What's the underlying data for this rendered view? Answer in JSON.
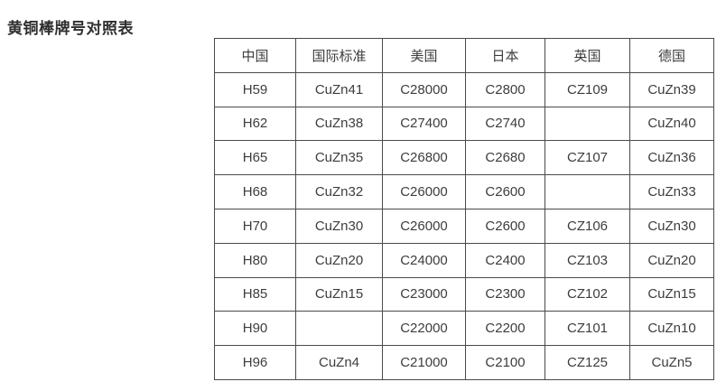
{
  "page": {
    "title": "黄铜棒牌号对照表"
  },
  "colors": {
    "table_border": "#4a4a4a",
    "text": "#3d3d3d",
    "title_text": "#2f2f2f",
    "background": "#ffffff"
  },
  "chart_data": {
    "type": "table",
    "title": "黄铜棒牌号对照表",
    "headers": [
      "中国",
      "国际标准",
      "美国",
      "日本",
      "英国",
      "德国"
    ],
    "rows": [
      [
        "H59",
        "CuZn41",
        "C28000",
        "C2800",
        "CZ109",
        "CuZn39"
      ],
      [
        "H62",
        "CuZn38",
        "C27400",
        "C2740",
        "",
        "CuZn40"
      ],
      [
        "H65",
        "CuZn35",
        "C26800",
        "C2680",
        "CZ107",
        "CuZn36"
      ],
      [
        "H68",
        "CuZn32",
        "C26000",
        "C2600",
        "",
        "CuZn33"
      ],
      [
        "H70",
        "CuZn30",
        "C26000",
        "C2600",
        "CZ106",
        "CuZn30"
      ],
      [
        "H80",
        "CuZn20",
        "C24000",
        "C2400",
        "CZ103",
        "CuZn20"
      ],
      [
        "H85",
        "CuZn15",
        "C23000",
        "C2300",
        "CZ102",
        "CuZn15"
      ],
      [
        "H90",
        "",
        "C22000",
        "C2200",
        "CZ101",
        "CuZn10"
      ],
      [
        "H96",
        "CuZn4",
        "C21000",
        "C2100",
        "CZ125",
        "CuZn5"
      ]
    ]
  }
}
